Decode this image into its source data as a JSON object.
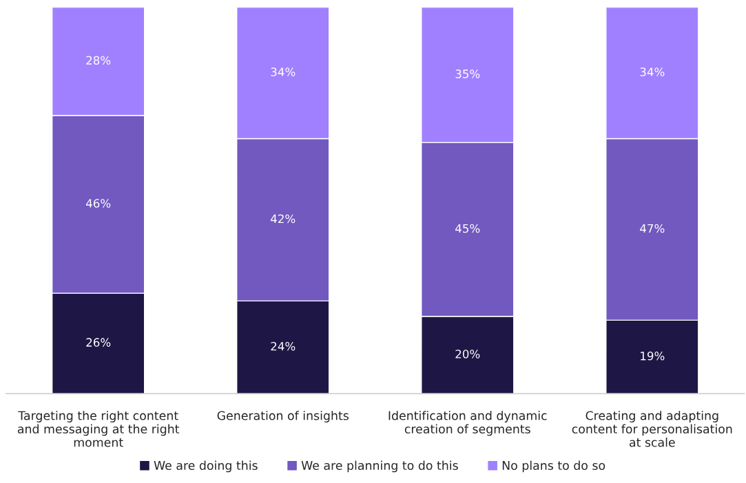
{
  "chart_data": {
    "type": "bar",
    "stacked": true,
    "categories": [
      "Targeting the right content and messaging at the right moment",
      "Generation of insights",
      "Identification and dynamic creation of segments",
      "Creating and adapting content for personalisation at scale"
    ],
    "series": [
      {
        "name": "We are doing this",
        "color": "#1e1745",
        "values": [
          26,
          24,
          20,
          19
        ],
        "value_labels": [
          "26%",
          "24%",
          "20%",
          "19%"
        ]
      },
      {
        "name": "We are planning to do this",
        "color": "#7159bf",
        "values": [
          46,
          42,
          45,
          47
        ],
        "value_labels": [
          "46%",
          "42%",
          "45%",
          "47%"
        ]
      },
      {
        "name": "No plans to do so",
        "color": "#a080ff",
        "values": [
          28,
          34,
          35,
          34
        ],
        "value_labels": [
          "28%",
          "34%",
          "35%",
          "34%"
        ]
      }
    ],
    "legend": "bottom",
    "grid": false,
    "tick_labels": "x"
  }
}
